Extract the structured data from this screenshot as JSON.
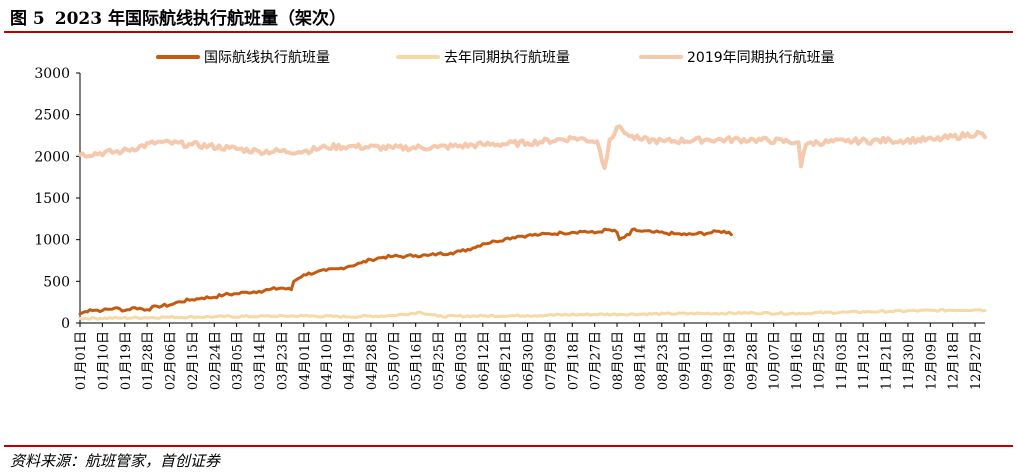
{
  "title": {
    "figure_no": "图 5",
    "text": "2023 年国际航线执行航班量（架次）"
  },
  "source": "资料来源：航班管家，首创证券",
  "colors": {
    "series1": "#c55a11",
    "series2": "#f6d9a6",
    "series3": "#f5c9ad",
    "rule": "#c00000"
  },
  "chart_data": {
    "type": "line",
    "title": "2023 年国际航线执行航班量（架次）",
    "xlabel": "",
    "ylabel": "",
    "ylim": [
      0,
      3000
    ],
    "yticks": [
      "0",
      "500",
      "1000",
      "1500",
      "2000",
      "2500",
      "3000"
    ],
    "grid": false,
    "legend_position": "top",
    "x_tick_labels": [
      "01月01日",
      "01月10日",
      "01月19日",
      "01月28日",
      "02月06日",
      "02月15日",
      "02月24日",
      "03月05日",
      "03月14日",
      "03月23日",
      "04月01日",
      "04月10日",
      "04月19日",
      "04月28日",
      "05月07日",
      "05月16日",
      "05月25日",
      "06月03日",
      "06月12日",
      "06月21日",
      "06月30日",
      "07月09日",
      "07月18日",
      "07月27日",
      "08月05日",
      "08月14日",
      "08月23日",
      "09月01日",
      "09月10日",
      "09月19日",
      "09月28日",
      "10月07日",
      "10月16日",
      "10月25日",
      "11月03日",
      "11月12日",
      "11月21日",
      "11月30日",
      "12月09日",
      "12月18日",
      "12月27日"
    ],
    "x_range_days": [
      1,
      365
    ],
    "series": [
      {
        "name": "国际航线执行航班量",
        "color": "#c55a11",
        "x": [
          1,
          5,
          10,
          15,
          19,
          23,
          28,
          32,
          37,
          41,
          46,
          50,
          55,
          59,
          64,
          68,
          73,
          77,
          82,
          86,
          87,
          91,
          96,
          100,
          105,
          109,
          114,
          118,
          123,
          127,
          132,
          136,
          141,
          145,
          150,
          154,
          159,
          163,
          168,
          172,
          177,
          181,
          186,
          190,
          195,
          199,
          204,
          208,
          213,
          217,
          218,
          222,
          223,
          227,
          232,
          236,
          240,
          245,
          249,
          254,
          258,
          262,
          263
        ],
        "values": [
          110,
          160,
          150,
          180,
          150,
          185,
          160,
          200,
          215,
          255,
          280,
          300,
          310,
          340,
          350,
          370,
          380,
          400,
          420,
          400,
          500,
          580,
          610,
          630,
          650,
          680,
          720,
          760,
          790,
          800,
          800,
          810,
          810,
          830,
          840,
          860,
          900,
          950,
          980,
          1010,
          1040,
          1050,
          1060,
          1070,
          1080,
          1090,
          1100,
          1080,
          1120,
          1090,
          1000,
          1060,
          1120,
          1100,
          1090,
          1080,
          1070,
          1060,
          1070,
          1080,
          1100,
          1090,
          1060
        ]
      },
      {
        "name": "去年同期执行航班量",
        "color": "#f6d9a6",
        "x": [
          1,
          18,
          37,
          55,
          73,
          91,
          109,
          127,
          138,
          145,
          163,
          181,
          200,
          218,
          236,
          254,
          272,
          290,
          309,
          327,
          345,
          363,
          365
        ],
        "values": [
          55,
          60,
          70,
          75,
          80,
          85,
          75,
          90,
          130,
          80,
          85,
          90,
          100,
          105,
          110,
          115,
          120,
          115,
          130,
          140,
          150,
          160,
          150
        ]
      },
      {
        "name": "2019年同期执行航班量",
        "color": "#f5c9ad",
        "x": [
          1,
          18,
          32,
          46,
          61,
          73,
          91,
          100,
          109,
          127,
          145,
          163,
          181,
          200,
          209,
          212,
          214,
          218,
          222,
          227,
          236,
          254,
          272,
          290,
          291,
          293,
          294,
          309,
          327,
          345,
          363,
          365
        ],
        "values": [
          2020,
          2060,
          2170,
          2140,
          2100,
          2060,
          2060,
          2110,
          2120,
          2100,
          2110,
          2140,
          2160,
          2220,
          2180,
          1860,
          2200,
          2360,
          2240,
          2200,
          2180,
          2200,
          2200,
          2170,
          1880,
          2140,
          2160,
          2180,
          2190,
          2200,
          2280,
          2230
        ]
      }
    ]
  }
}
